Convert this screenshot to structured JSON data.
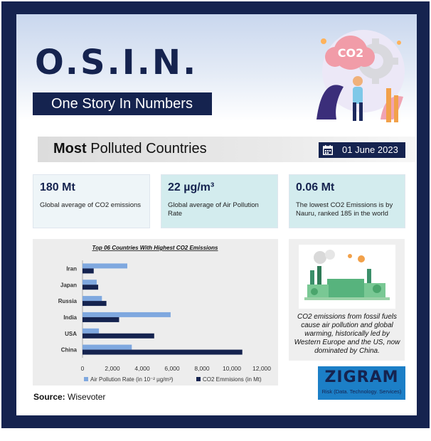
{
  "header": {
    "logo": "O.S.I.N.",
    "tagline": "One Story In Numbers",
    "co2_badge": "CO2"
  },
  "section": {
    "title_bold": "Most",
    "title_rest": "Polluted Countries",
    "date": "01 June 2023"
  },
  "stats": [
    {
      "value": "180 Mt",
      "description": "Global average of CO2 emissions"
    },
    {
      "value": "22 µg/m³",
      "description": "Global average of Air Pollution Rate"
    },
    {
      "value": "0.06 Mt",
      "description": "The lowest CO2 Emissions is by Nauru, ranked 185 in the world"
    }
  ],
  "info": {
    "text": "CO2 emissions from fossil fuels cause air pollution and global warming, historically led by Western Europe and the US, now dominated by China."
  },
  "source": {
    "label": "Source:",
    "value": "Wisevoter"
  },
  "brand": {
    "name": "ZIGRAM",
    "tagline": "Risk (Data. Technology. Services)"
  },
  "colors": {
    "navy": "#15234f",
    "light_blue": "#7fa8df",
    "card_light": "#eef5f8",
    "card_teal": "#d3ecee",
    "brand_blue": "#1c7fc7"
  },
  "chart_data": {
    "type": "bar",
    "orientation": "horizontal",
    "title": "Top 06 Countries With Highest CO2 Emissions",
    "categories": [
      "Iran",
      "Japan",
      "Russia",
      "India",
      "USA",
      "China"
    ],
    "series": [
      {
        "name": "Air Pollution Rate (in 10⁻² µg/m³)",
        "color": "#7fa8df",
        "values": [
          3000,
          950,
          1300,
          5900,
          1100,
          3300
        ]
      },
      {
        "name": "CO2 Emmisions (in Mt)",
        "color": "#15234f",
        "values": [
          750,
          1050,
          1600,
          2450,
          4800,
          10700
        ]
      }
    ],
    "xlim": [
      0,
      12000
    ],
    "xticks": [
      0,
      2000,
      4000,
      6000,
      8000,
      10000,
      12000
    ],
    "xtick_labels": [
      "0",
      "2,000",
      "4,000",
      "6,000",
      "8,000",
      "10,000",
      "12,000"
    ],
    "grid": false,
    "legend": "bottom"
  }
}
